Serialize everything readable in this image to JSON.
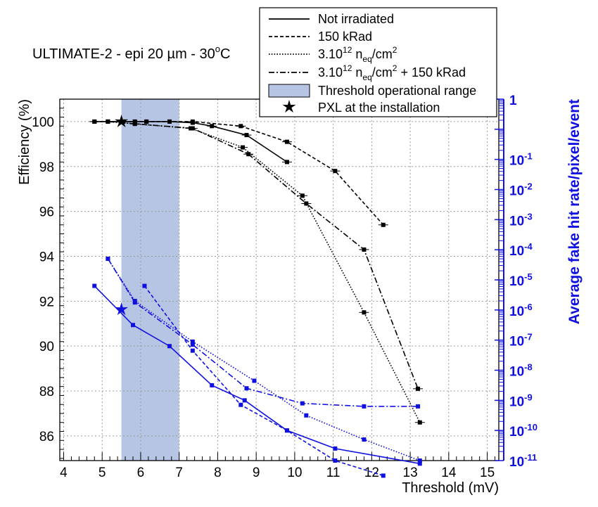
{
  "chart_data": {
    "type": "line",
    "title": "ULTIMATE-2 - epi 20 µm - 30°C",
    "title_parts": {
      "main": "ULTIMATE-2 - epi 20 ",
      "unit": "µm - 30",
      "degree": "o",
      "tail": "C"
    },
    "xlabel": "Threshold (mV)",
    "ylabel": "Efficiency (%)",
    "y2label": "Average fake hit rate/pixel/event",
    "xlim": [
      3.9,
      15.3
    ],
    "ylim": [
      84.9,
      101
    ],
    "y2lim_log10": [
      -11,
      1
    ],
    "x_ticks": [
      4,
      5,
      6,
      7,
      8,
      9,
      10,
      11,
      12,
      13,
      14,
      15
    ],
    "y_ticks": [
      86,
      88,
      90,
      92,
      94,
      96,
      98,
      100
    ],
    "y2_ticks": [
      {
        "exp": 1,
        "mantissa": "1",
        "sup": ""
      },
      {
        "exp": -1,
        "mantissa": "10",
        "sup": "-1"
      },
      {
        "exp": -2,
        "mantissa": "10",
        "sup": "-2"
      },
      {
        "exp": -3,
        "mantissa": "10",
        "sup": "-3"
      },
      {
        "exp": -4,
        "mantissa": "10",
        "sup": "-4"
      },
      {
        "exp": -5,
        "mantissa": "10",
        "sup": "-5"
      },
      {
        "exp": -6,
        "mantissa": "10",
        "sup": "-6"
      },
      {
        "exp": -7,
        "mantissa": "10",
        "sup": "-7"
      },
      {
        "exp": -8,
        "mantissa": "10",
        "sup": "-8"
      },
      {
        "exp": -9,
        "mantissa": "10",
        "sup": "-9"
      },
      {
        "exp": -10,
        "mantissa": "10",
        "sup": "-10"
      },
      {
        "exp": -11,
        "mantissa": "10",
        "sup": "-11"
      }
    ],
    "grid": true,
    "threshold_range": {
      "x_from": 5.5,
      "x_to": 7.0,
      "color": "#b7c5e4"
    },
    "efficiency_series": [
      {
        "name": "Not irradiated",
        "dash": "solid",
        "x": [
          4.8,
          5.15,
          5.55,
          5.85,
          6.15,
          6.75,
          7.35,
          7.85,
          8.75,
          9.8
        ],
        "y": [
          100.0,
          100.0,
          100.0,
          100.0,
          100.0,
          100.0,
          99.95,
          99.8,
          99.4,
          98.2
        ]
      },
      {
        "name": "150 kRad",
        "dash": "dashed",
        "x": [
          4.8,
          5.15,
          5.55,
          5.85,
          6.15,
          6.75,
          7.35,
          8.6,
          9.8,
          11.05,
          12.3
        ],
        "y": [
          100.0,
          100.0,
          100.0,
          100.0,
          100.0,
          100.0,
          100.0,
          99.8,
          99.1,
          97.8,
          95.4
        ]
      },
      {
        "name": "3.10^12 neq/cm2",
        "dash": "dotted",
        "x": [
          5.15,
          5.85,
          7.3,
          8.65,
          10.2,
          11.8,
          13.25
        ],
        "y": [
          100.0,
          99.9,
          99.7,
          98.85,
          96.7,
          91.5,
          86.6
        ]
      },
      {
        "name": "3.10^12 neq/cm2 + 150 kRad",
        "dash": "dashdot",
        "x": [
          5.15,
          5.85,
          7.35,
          8.8,
          10.3,
          11.8,
          13.2
        ],
        "y": [
          100.0,
          99.9,
          99.7,
          98.55,
          96.35,
          94.3,
          88.1
        ]
      }
    ],
    "fake_hit_rate_series": [
      {
        "name": "Not irradiated",
        "dash": "solid",
        "x": [
          4.8,
          5.8,
          6.75,
          7.85,
          8.7,
          9.8,
          11.05,
          13.25
        ],
        "log10_rate": [
          -5.2,
          -6.5,
          -7.2,
          -8.5,
          -9.0,
          -10.0,
          -10.6,
          -11.1
        ]
      },
      {
        "name": "150 kRad",
        "dash": "dashed",
        "x": [
          6.1,
          7.35,
          8.6,
          9.8,
          11.05,
          12.3
        ],
        "log10_rate": [
          -5.2,
          -7.35,
          -9.15,
          -10.0,
          -11.0,
          -11.5
        ]
      },
      {
        "name": "3.10^12 neq/cm2",
        "dash": "dotted",
        "x": [
          5.15,
          5.85,
          7.35,
          8.95,
          10.3,
          11.8,
          13.25
        ],
        "log10_rate": [
          -4.3,
          -5.7,
          -7.05,
          -8.35,
          -9.5,
          -10.3,
          -11.0
        ]
      },
      {
        "name": "3.10^12 neq/cm2 + 150 kRad",
        "dash": "dashdot",
        "x": [
          5.15,
          5.85,
          7.35,
          8.75,
          10.2,
          11.8,
          13.2
        ],
        "log10_rate": [
          -4.3,
          -5.75,
          -7.15,
          -8.6,
          -9.1,
          -9.2,
          -9.2
        ]
      }
    ],
    "pxl_marker": {
      "label": "PXL at the installation",
      "x": 5.5,
      "efficiency": 100.0,
      "log10_rate": -5.98
    },
    "legend": [
      {
        "type": "line",
        "dash": "solid",
        "label": "Not irradiated"
      },
      {
        "type": "line",
        "dash": "dashed",
        "label": "150 kRad"
      },
      {
        "type": "line",
        "dash": "dotted",
        "label_main": "3.10",
        "label_sup": "12",
        "label_n": " n",
        "label_sub": "eq",
        "label_unit": "/cm",
        "label_sup2": "2",
        "label_tail": ""
      },
      {
        "type": "line",
        "dash": "dashdot",
        "label_main": "3.10",
        "label_sup": "12",
        "label_n": " n",
        "label_sub": "eq",
        "label_unit": "/cm",
        "label_sup2": "2",
        "label_tail": " + 150 kRad"
      },
      {
        "type": "box",
        "label": "Threshold operational range"
      },
      {
        "type": "star",
        "label": "PXL at the installation"
      }
    ],
    "colors": {
      "efficiency": "#000000",
      "fake_rate": "#1010e0",
      "band": "#b7c5e4",
      "grid": "#9a9a9a"
    }
  }
}
